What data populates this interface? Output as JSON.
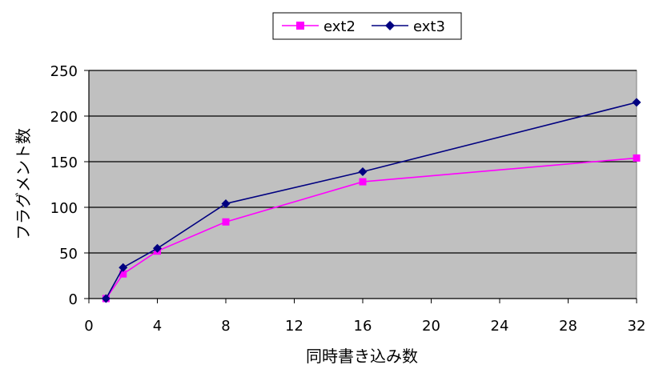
{
  "chart_data": {
    "type": "line",
    "xlabel": "同時書き込み数",
    "ylabel": "フラグメント数",
    "xlim": [
      0,
      32
    ],
    "ylim": [
      0,
      250
    ],
    "xticks": [
      0,
      4,
      8,
      12,
      16,
      20,
      24,
      28,
      32
    ],
    "yticks": [
      0,
      50,
      100,
      150,
      200,
      250
    ],
    "grid": "horizontal",
    "plot_background": "#c0c0c0",
    "legend_position": "top",
    "series": [
      {
        "name": "ext2",
        "color": "#ff00ff",
        "marker": "square",
        "x": [
          1,
          2,
          4,
          8,
          16,
          32
        ],
        "y": [
          0,
          27,
          52,
          84,
          128,
          154
        ]
      },
      {
        "name": "ext3",
        "color": "#000080",
        "marker": "diamond",
        "x": [
          1,
          2,
          4,
          8,
          16,
          32
        ],
        "y": [
          0,
          34,
          55,
          104,
          139,
          215
        ]
      }
    ]
  }
}
